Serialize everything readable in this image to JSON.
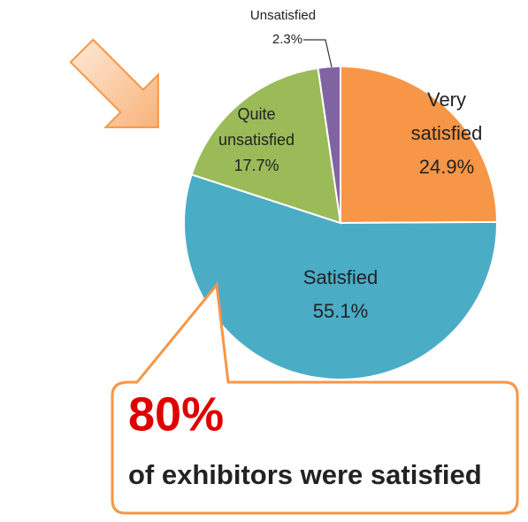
{
  "chart_data": {
    "type": "pie",
    "categories": [
      "Very satisfied",
      "Satisfied",
      "Quite unsatisfied",
      "Unsatisfied"
    ],
    "values": [
      24.9,
      55.1,
      17.7,
      2.3
    ],
    "value_labels": [
      "24.9%",
      "55.1%",
      "17.7%",
      "2.3%"
    ],
    "colors": [
      "#f79646",
      "#4bacc6",
      "#9bbb59",
      "#8064a2"
    ],
    "annotations": [
      "80%",
      "of exhibitors were satisfied"
    ]
  }
}
